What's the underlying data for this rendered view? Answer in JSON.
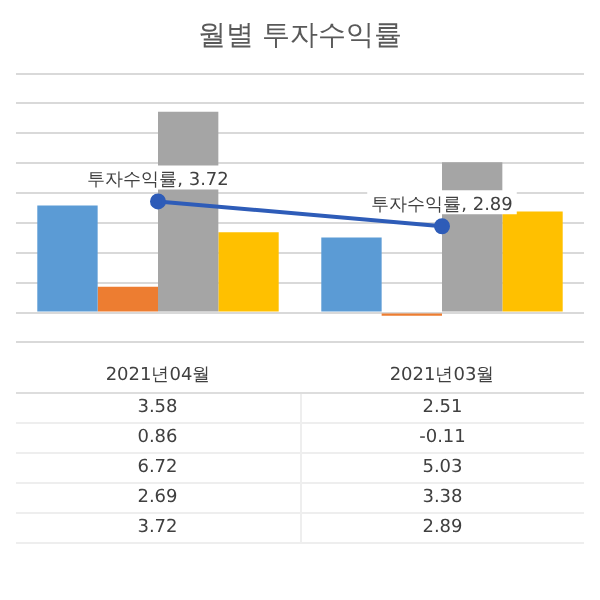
{
  "chart_data": {
    "type": "bar",
    "title": "월별 투자수익률",
    "categories": [
      "2021년04월",
      "2021년03월"
    ],
    "series": [
      {
        "color": "#5b9bd5",
        "values": [
          3.58,
          2.51
        ]
      },
      {
        "color": "#ed7d31",
        "values": [
          0.86,
          -0.11
        ]
      },
      {
        "color": "#a5a5a5",
        "values": [
          6.72,
          5.03
        ]
      },
      {
        "color": "#ffc000",
        "values": [
          2.69,
          3.38
        ]
      },
      {
        "type": "line",
        "color": "#2e5cb8",
        "values": [
          3.72,
          2.89
        ]
      }
    ],
    "ylim": [
      -1,
      8
    ],
    "yticks": [
      {
        "value": -1,
        "label": null
      },
      {
        "value": 0,
        "label": null
      },
      {
        "value": 1,
        "label": null
      },
      {
        "value": 2,
        "label": null
      },
      {
        "value": 3,
        "label": null
      },
      {
        "value": 4,
        "label": null
      },
      {
        "value": 5,
        "label": null
      },
      {
        "value": 6,
        "label": null
      },
      {
        "value": 7,
        "label": null
      },
      {
        "value": 8,
        "label": null
      }
    ],
    "annotations": [
      {
        "text": "투자수익률, 3.72",
        "x": "2021년04월",
        "y": 3.72
      },
      {
        "text": "투자수익률, 2.89",
        "x": "2021년03월",
        "y": 2.89
      }
    ],
    "grid": "y",
    "tick_labels": "x",
    "marker": "circle",
    "data_labels": true
  }
}
